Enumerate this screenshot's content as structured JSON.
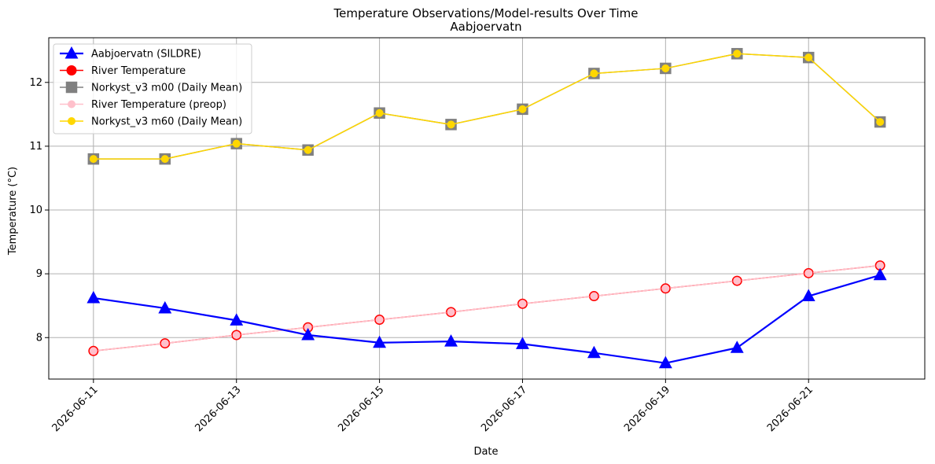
{
  "chart_data": {
    "type": "line",
    "title": "Temperature Observations/Model-results Over Time",
    "subtitle": "Aabjoervatn",
    "xlabel": "Date",
    "ylabel": "Temperature (°C)",
    "x": [
      "2026-06-11",
      "2026-06-12",
      "2026-06-13",
      "2026-06-14",
      "2026-06-15",
      "2026-06-16",
      "2026-06-17",
      "2026-06-18",
      "2026-06-19",
      "2026-06-20",
      "2026-06-21",
      "2026-06-22"
    ],
    "x_tick_labels": [
      "2026-06-11",
      "2026-06-13",
      "2026-06-15",
      "2026-06-17",
      "2026-06-19",
      "2026-06-21"
    ],
    "xlim": [
      "2026-06-10T09:00",
      "2026-06-22T15:00"
    ],
    "ylim": [
      7.35,
      12.7
    ],
    "y_ticks": [
      8,
      9,
      10,
      11,
      12
    ],
    "grid": true,
    "legend_position": "top-left",
    "series": [
      {
        "name": "Aabjoervatn (SILDRE)",
        "color": "#0000ff",
        "marker": "triangle",
        "values": [
          8.62,
          8.46,
          8.27,
          8.04,
          7.92,
          7.94,
          7.9,
          7.76,
          7.6,
          7.84,
          8.65,
          8.98
        ]
      },
      {
        "name": "River Temperature",
        "color": "#ff0000",
        "marker": "circle",
        "values": [
          7.79,
          7.91,
          8.04,
          8.16,
          8.28,
          8.4,
          8.53,
          8.65,
          8.77,
          8.89,
          9.01,
          9.13
        ]
      },
      {
        "name": "Norkyst_v3 m00 (Daily Mean)",
        "color": "#808080",
        "marker": "square",
        "values": [
          10.8,
          10.8,
          11.04,
          10.94,
          11.52,
          11.34,
          11.58,
          12.14,
          12.22,
          12.45,
          12.39,
          11.38
        ]
      },
      {
        "name": "River Temperature (preop)",
        "color": "#ffc0cb",
        "marker": "circle",
        "values": [
          7.79,
          7.91,
          8.04,
          8.16,
          8.28,
          8.4,
          8.53,
          8.65,
          8.77,
          8.89,
          9.01,
          9.13
        ]
      },
      {
        "name": "Norkyst_v3 m60 (Daily Mean)",
        "color": "#ffd700",
        "marker": "circle",
        "values": [
          10.8,
          10.8,
          11.04,
          10.94,
          11.52,
          11.34,
          11.58,
          12.14,
          12.22,
          12.45,
          12.39,
          11.38
        ]
      }
    ]
  }
}
